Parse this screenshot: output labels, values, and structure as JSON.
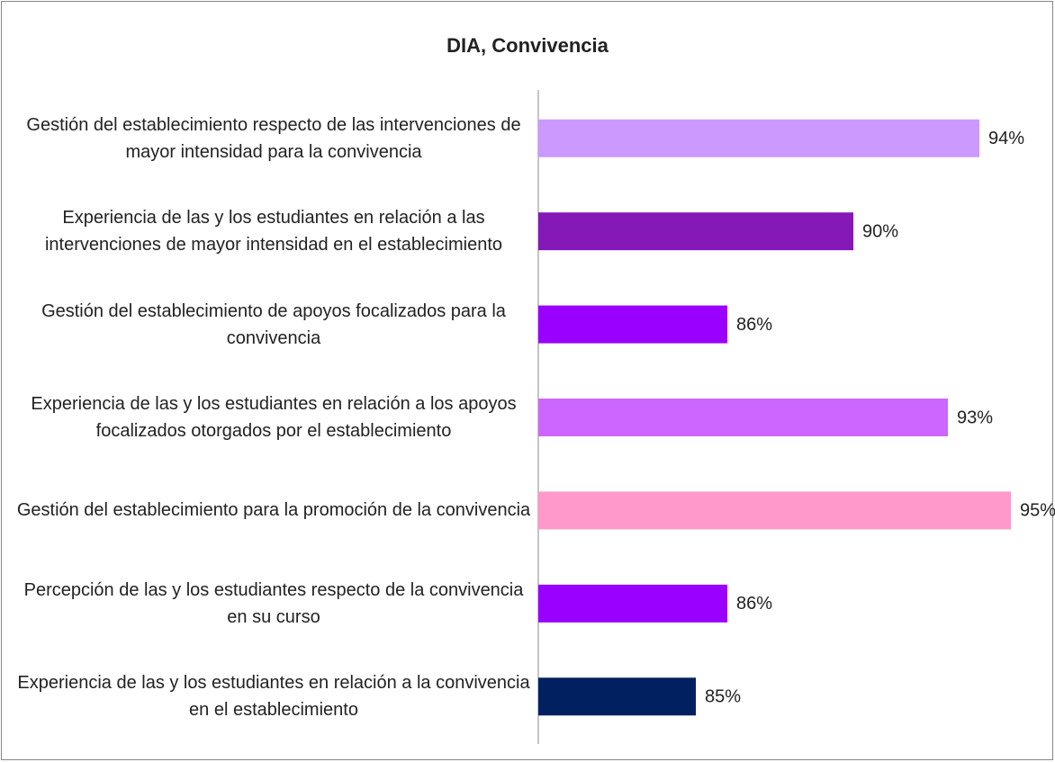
{
  "chart_data": {
    "type": "barh",
    "title": "DIA, Convivencia",
    "categories": [
      "Gestión del establecimiento respecto de las intervenciones de mayor intensidad para la convivencia",
      "Experiencia de las y los estudiantes en relación a las intervenciones de mayor intensidad en el establecimiento",
      "Gestión del establecimiento de apoyos focalizados para la convivencia",
      "Experiencia de las y los estudiantes en relación a los apoyos focalizados otorgados por el establecimiento",
      "Gestión del establecimiento para la promoción de la convivencia",
      "Percepción de las y los estudiantes respecto de la convivencia en su curso",
      "Experiencia de las y los estudiantes en relación a la convivencia en el establecimiento"
    ],
    "values": [
      94,
      90,
      86,
      93,
      95,
      86,
      85
    ],
    "value_labels": [
      "94%",
      "90%",
      "86%",
      "93%",
      "95%",
      "86%",
      "85%"
    ],
    "colors": [
      "#cc99ff",
      "#8419b8",
      "#9900ff",
      "#cc66ff",
      "#ff99cc",
      "#9900ff",
      "#002060"
    ],
    "xlim": [
      80,
      96
    ]
  }
}
